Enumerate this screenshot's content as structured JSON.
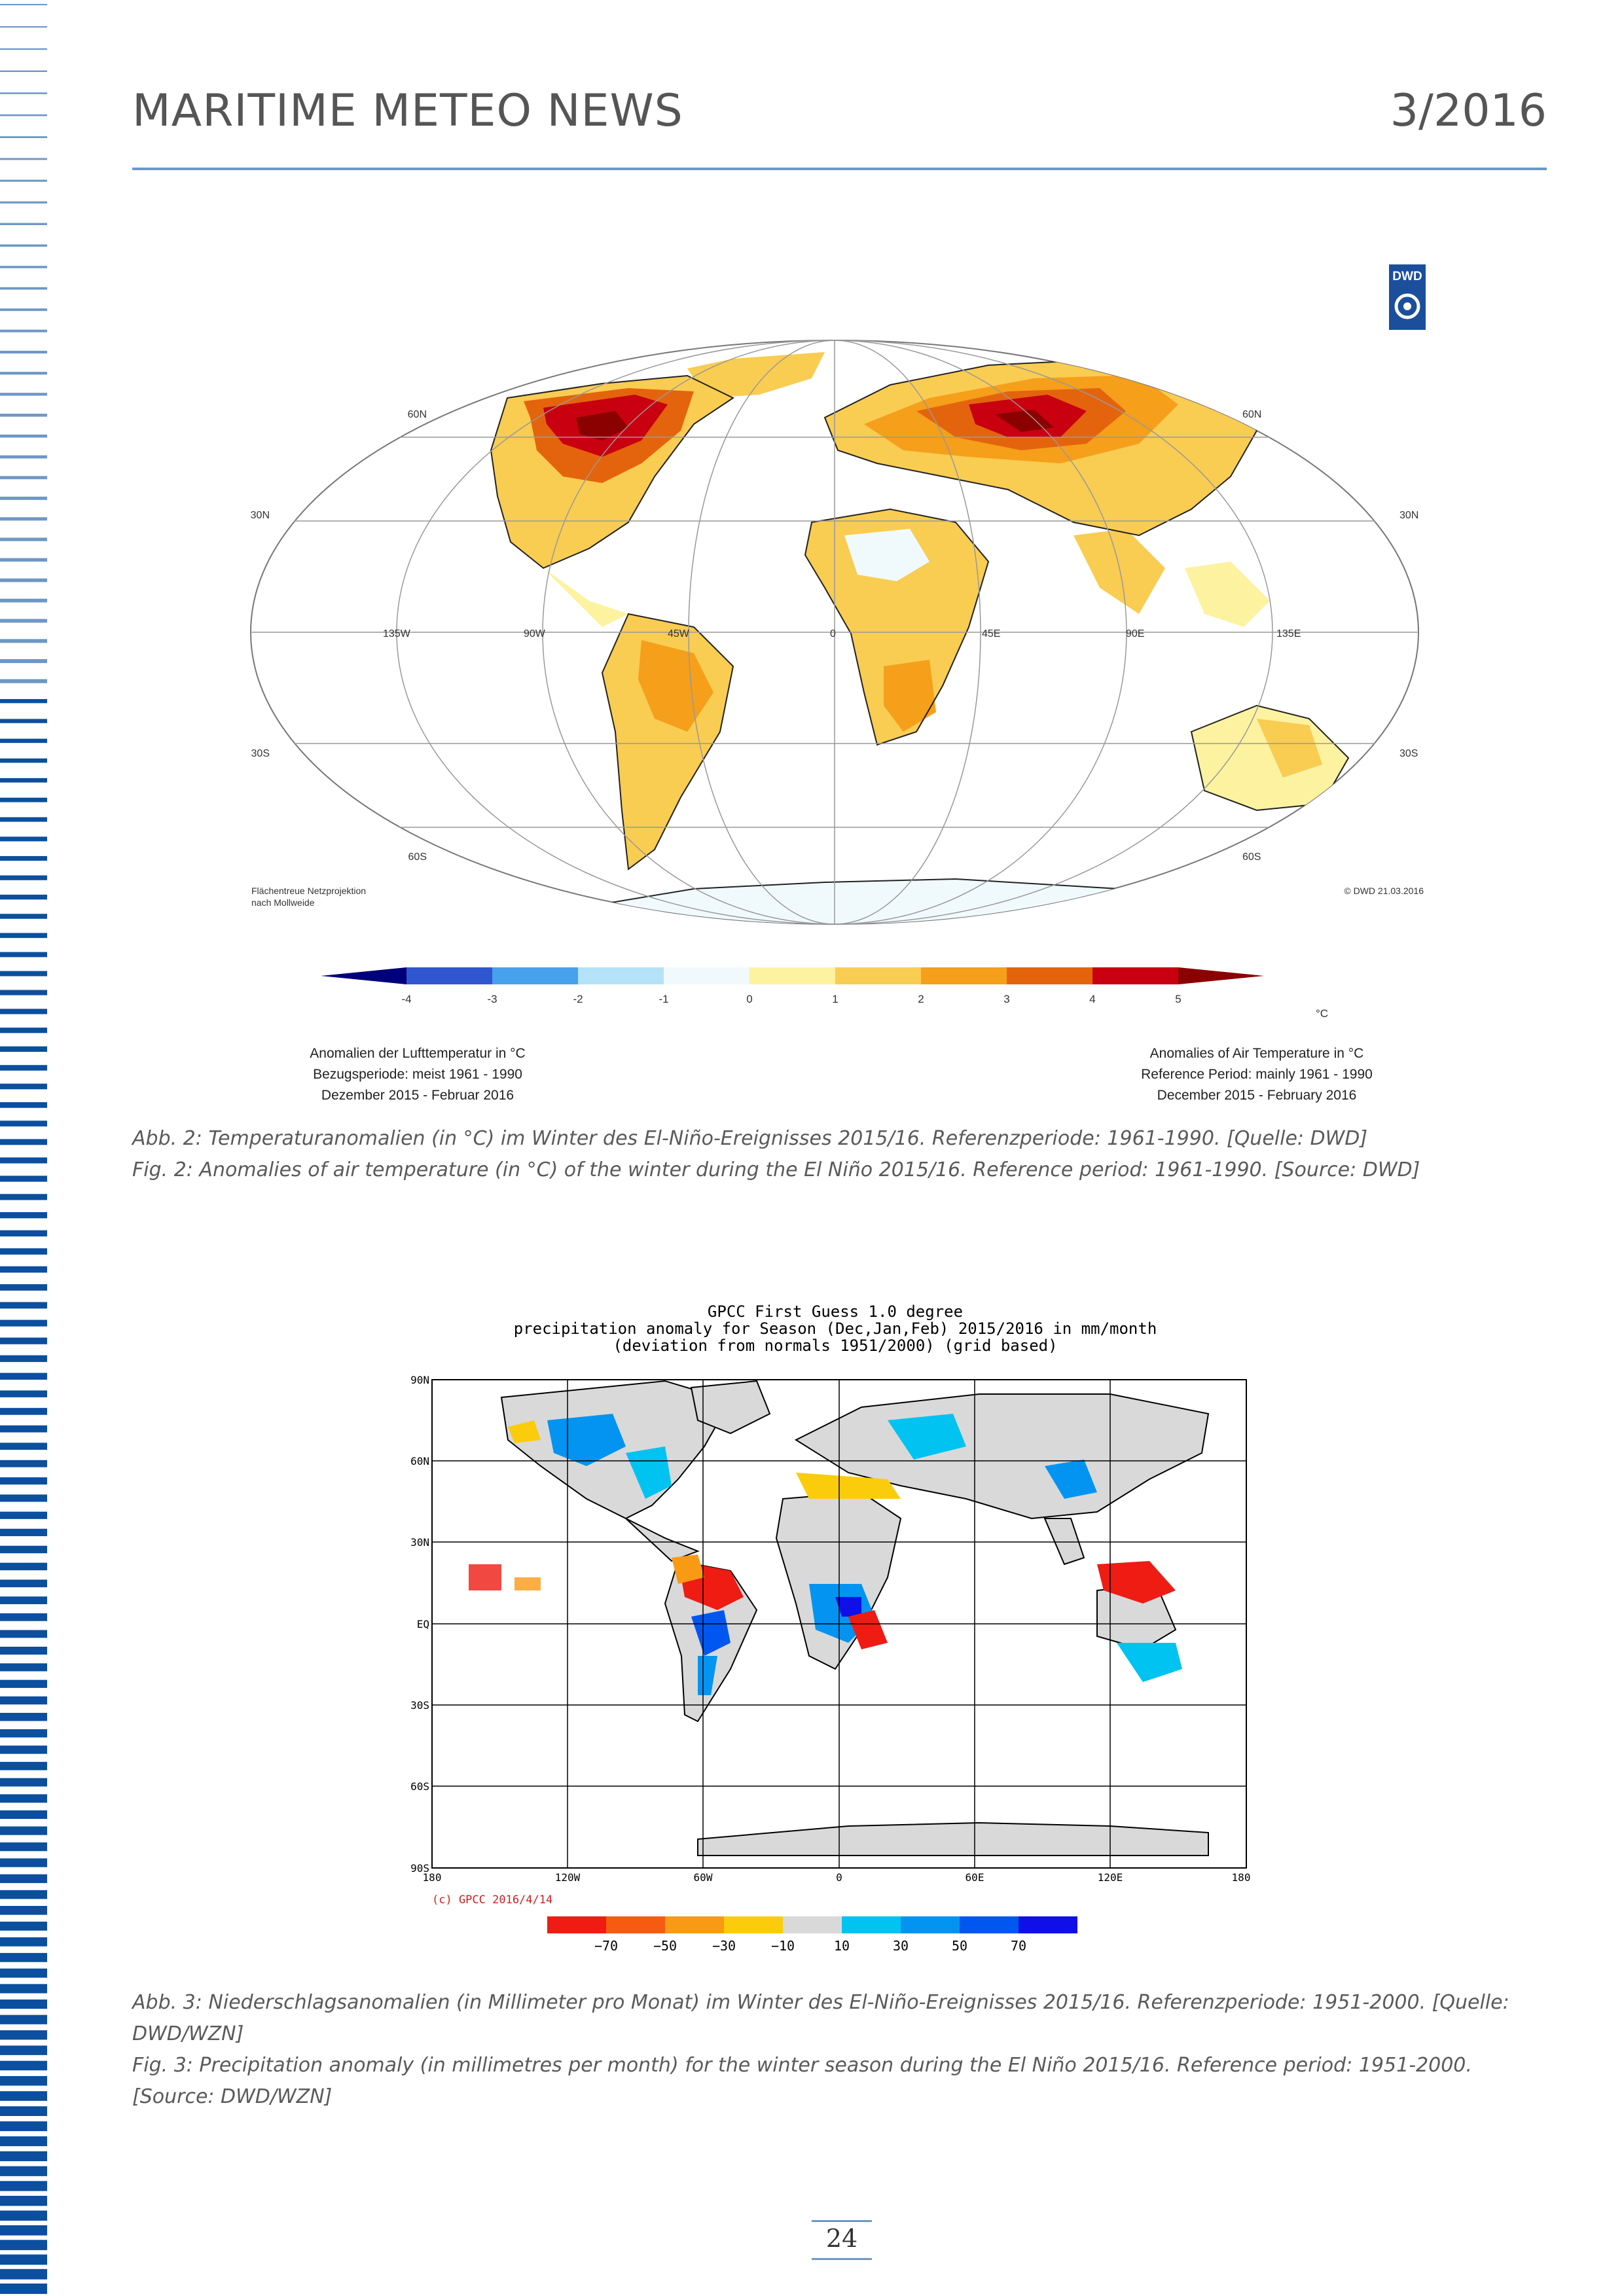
{
  "header": {
    "title": "MARITIME METEO NEWS",
    "issue": "3/2016"
  },
  "figure1": {
    "logo_text": "DWD",
    "lat_labels_left": [
      "60N",
      "30N",
      "30S",
      "60S"
    ],
    "lat_labels_right": [
      "60N",
      "30N",
      "30S",
      "60S"
    ],
    "lon_labels": [
      "135W",
      "90W",
      "45W",
      "0",
      "45E",
      "90E",
      "135E"
    ],
    "projection_note_1": "Flächentreue Netzprojektion",
    "projection_note_2": "nach Mollweide",
    "copyright": "© DWD 21.03.2016",
    "scale_ticks": [
      "-4",
      "-3",
      "-2",
      "-1",
      "0",
      "1",
      "2",
      "3",
      "4",
      "5"
    ],
    "scale_unit": "°C",
    "scale_colors": [
      "#00007a",
      "#3056d0",
      "#47a1eb",
      "#b4e2f8",
      "#f0fafd",
      "#fdf2a0",
      "#f9cc52",
      "#f59f1b",
      "#e4640d",
      "#c80010",
      "#8b0000"
    ],
    "legend_de_1": "Anomalien der Lufttemperatur in °C",
    "legend_de_2": "Bezugsperiode: meist 1961 - 1990",
    "legend_de_3": "Dezember 2015 - Februar 2016",
    "legend_en_1": "Anomalies of Air Temperature in °C",
    "legend_en_2": "Reference Period: mainly 1961 - 1990",
    "legend_en_3": "December 2015 - February 2016"
  },
  "caption1": {
    "line1": "Abb. 2: Temperaturanomalien (in °C) im Winter des El-Niño-Ereignisses 2015/16. Referenzperiode: 1961-1990. [Quelle: DWD]",
    "line2": "Fig. 2: Anomalies of air temperature (in °C) of the winter during the El Niño 2015/16. Reference period: 1961-1990. [Source: DWD]"
  },
  "figure2": {
    "title_1": "GPCC First Guess 1.0 degree",
    "title_2": "precipitation anomaly for Season (Dec,Jan,Feb) 2015/2016 in mm/month",
    "title_3": "(deviation from normals 1951/2000) (grid based)",
    "lat_labels": [
      "90N",
      "60N",
      "30N",
      "EQ",
      "30S",
      "60S",
      "90S"
    ],
    "lon_labels": [
      "180",
      "120W",
      "60W",
      "0",
      "60E",
      "120E",
      "180"
    ],
    "credit": "(c) GPCC 2016/4/14",
    "scale_ticks": [
      "−70",
      "−50",
      "−30",
      "−10",
      "10",
      "30",
      "50",
      "70"
    ],
    "scale_colors": [
      "#ee1c13",
      "#f75b12",
      "#f99a14",
      "#fbcc0b",
      "#d9d9d9",
      "#00c3f2",
      "#0294f0",
      "#0057f0",
      "#0f10e8"
    ]
  },
  "caption2": {
    "text_de": "Abb. 3: Niederschlagsanomalien (in Millimeter pro Monat) im Winter des El-Niño-Ereignisses 2015/16. Referenzperiode: 1951-2000. [Quelle: DWD/WZN]",
    "text_en": "Fig. 3: Precipitation anomaly (in millimetres per month) for the winter season during the El Niño 2015/16. Reference period: 1951-2000. [Source: DWD/WZN]"
  },
  "footer": {
    "page_number": "24"
  }
}
